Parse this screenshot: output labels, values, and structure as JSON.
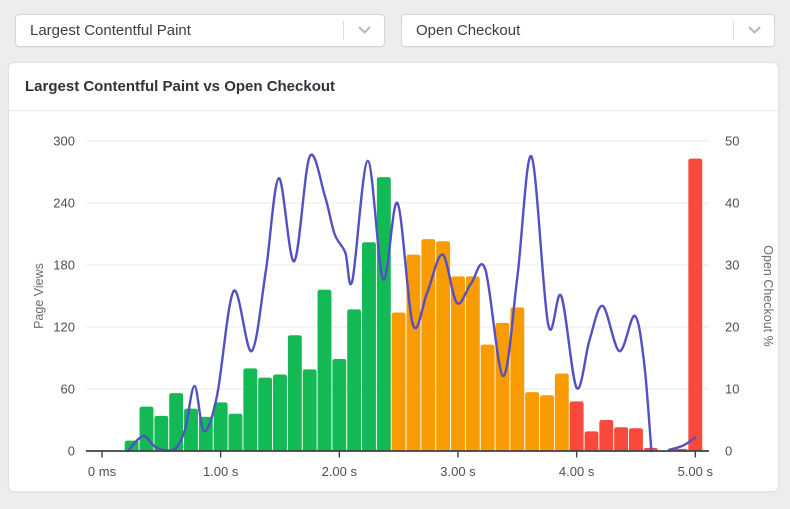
{
  "selectors": {
    "metric": {
      "value": "Largest Contentful Paint",
      "icon": "chevron-down"
    },
    "segment": {
      "value": "Open Checkout",
      "icon": "chevron-down"
    }
  },
  "card": {
    "title": "Largest Contentful Paint vs Open Checkout"
  },
  "chart_data": {
    "type": "bar",
    "subtype": "histogram-with-line-overlay",
    "title": "Largest Contentful Paint vs Open Checkout",
    "x_axis": {
      "tick_times_s": [
        0,
        1,
        2,
        3,
        4,
        5
      ],
      "tick_labels": [
        "0 ms",
        "1.00 s",
        "2.00 s",
        "3.00 s",
        "4.00 s",
        "5.00 s"
      ],
      "range_s": [
        0,
        5.25
      ]
    },
    "y_left": {
      "title": "Page Views",
      "ticks": [
        0,
        60,
        120,
        180,
        240,
        300
      ],
      "max": 300
    },
    "y_right": {
      "title": "Open Checkout %",
      "ticks": [
        0,
        10,
        20,
        30,
        40,
        50
      ],
      "max": 50
    },
    "grid": "horizontal-only",
    "bins": {
      "width_s": 0.125,
      "centers_s": [
        0.25,
        0.375,
        0.5,
        0.625,
        0.75,
        0.875,
        1.0,
        1.125,
        1.25,
        1.375,
        1.5,
        1.625,
        1.75,
        1.875,
        2.0,
        2.125,
        2.25,
        2.375,
        2.5,
        2.625,
        2.75,
        2.875,
        3.0,
        3.125,
        3.25,
        3.375,
        3.5,
        3.625,
        3.75,
        3.875,
        4.0,
        4.125,
        4.25,
        4.375,
        4.5,
        4.625,
        4.75,
        4.875,
        5.0
      ],
      "page_views": [
        10,
        43,
        34,
        56,
        41,
        33,
        47,
        36,
        80,
        71,
        74,
        112,
        79,
        156,
        89,
        137,
        202,
        265,
        134,
        190,
        205,
        203,
        169,
        169,
        103,
        124,
        139,
        57,
        54,
        75,
        48,
        19,
        30,
        23,
        22,
        3,
        0,
        2,
        283
      ],
      "colors": [
        "green",
        "green",
        "green",
        "green",
        "green",
        "green",
        "green",
        "green",
        "green",
        "green",
        "green",
        "green",
        "green",
        "green",
        "green",
        "green",
        "green",
        "green",
        "orange",
        "orange",
        "orange",
        "orange",
        "orange",
        "orange",
        "orange",
        "orange",
        "orange",
        "orange",
        "orange",
        "orange",
        "red",
        "red",
        "red",
        "red",
        "red",
        "red",
        "red",
        "red",
        "red"
      ]
    },
    "line_series": {
      "name": "Open Checkout %",
      "axis": "right",
      "segments": [
        [
          [
            0.22,
            0
          ],
          [
            0.3,
            1.8
          ],
          [
            0.36,
            2.4
          ],
          [
            0.44,
            0.8
          ],
          [
            0.53,
            0.1
          ],
          [
            0.62,
            0.4
          ],
          [
            0.7,
            3.5
          ],
          [
            0.78,
            10.5
          ],
          [
            0.86,
            3.2
          ],
          [
            0.97,
            9.0
          ],
          [
            1.11,
            25.8
          ],
          [
            1.26,
            16.1
          ],
          [
            1.38,
            29.0
          ],
          [
            1.49,
            44.0
          ],
          [
            1.62,
            30.6
          ],
          [
            1.75,
            47.5
          ],
          [
            1.88,
            41.0
          ],
          [
            1.96,
            35.0
          ],
          [
            2.05,
            32.0
          ],
          [
            2.11,
            27.5
          ],
          [
            2.24,
            46.8
          ],
          [
            2.37,
            27.7
          ],
          [
            2.49,
            40.0
          ],
          [
            2.62,
            20.4
          ],
          [
            2.74,
            25.5
          ],
          [
            2.87,
            31.7
          ],
          [
            2.99,
            23.9
          ],
          [
            3.11,
            27.0
          ],
          [
            3.23,
            29.3
          ],
          [
            3.38,
            12.1
          ],
          [
            3.5,
            28.0
          ],
          [
            3.62,
            47.5
          ],
          [
            3.76,
            20.4
          ],
          [
            3.87,
            25.0
          ],
          [
            4.0,
            10.2
          ],
          [
            4.11,
            18.0
          ],
          [
            4.22,
            23.4
          ],
          [
            4.36,
            16.1
          ],
          [
            4.49,
            21.8
          ],
          [
            4.57,
            14.0
          ],
          [
            4.63,
            0
          ]
        ],
        [
          [
            4.78,
            0.2
          ],
          [
            4.9,
            0.9
          ],
          [
            5.0,
            2.2
          ]
        ]
      ]
    },
    "colors": {
      "green": "#13b955",
      "orange": "#f99b02",
      "red": "#f8493c",
      "line": "#5350c3",
      "grid": "#e7e8ea",
      "axis": "#3d4249",
      "tick_text": "#4c4f54"
    }
  }
}
